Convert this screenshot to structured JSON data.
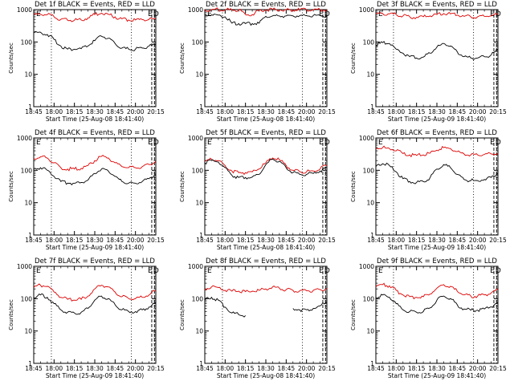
{
  "colors": {
    "events": "#000000",
    "lld": "#dd0000",
    "background": "#ffffff",
    "axes": "#000000"
  },
  "chart_data": [
    {
      "type": "line",
      "title": "Det 1f BLACK = Events, RED = LLD",
      "xlabel": "Start Time (25-Aug-08 18:41:40)",
      "ylabel": "Counts/sec",
      "x": [
        "18:45",
        "18:50",
        "18:55",
        "19:00",
        "19:05",
        "19:10",
        "19:15",
        "19:20",
        "19:25",
        "19:30",
        "19:35",
        "19:40",
        "19:45",
        "19:50",
        "19:55",
        "20:00",
        "20:05",
        "20:10",
        "20:15"
      ],
      "series": [
        {
          "name": "Events",
          "color": "black",
          "values": [
            190,
            200,
            170,
            120,
            75,
            60,
            60,
            62,
            75,
            110,
            150,
            130,
            90,
            65,
            60,
            60,
            65,
            75,
            80
          ]
        },
        {
          "name": "LLD",
          "color": "red",
          "values": [
            700,
            720,
            700,
            600,
            500,
            470,
            470,
            480,
            560,
            700,
            780,
            720,
            600,
            520,
            480,
            480,
            490,
            500,
            520
          ]
        }
      ],
      "ylim": [
        1,
        1000
      ],
      "yscale": "log",
      "yticks": [
        "1",
        "10",
        "100",
        "1000"
      ],
      "xticks": [
        "18:45",
        "18:00",
        "18:15",
        "18:30",
        "18:45",
        "20:00",
        "20:15"
      ],
      "markers": {
        "dotted": [
          "18:58",
          "19:57"
        ],
        "dashed": [
          "20:12",
          "20:14"
        ],
        "letters": [
          "E",
          "E",
          "D"
        ]
      }
    },
    {
      "type": "line",
      "title": "Det 2f BLACK = Events, RED = LLD",
      "xlabel": "Start Time (25-Aug-08 18:41:40)",
      "ylabel": "Counts/sec",
      "x": [
        "18:45",
        "18:50",
        "18:55",
        "19:00",
        "19:05",
        "19:10",
        "19:15",
        "19:20",
        "19:25",
        "19:30",
        "19:35",
        "19:40",
        "19:45",
        "19:50",
        "19:55",
        "20:00",
        "20:05",
        "20:10",
        "20:15"
      ],
      "series": [
        {
          "name": "Events",
          "color": "black",
          "values": [
            700,
            690,
            680,
            600,
            380,
            370,
            370,
            370,
            380,
            620,
            640,
            640,
            640,
            640,
            650,
            650,
            660,
            660,
            660
          ]
        },
        {
          "name": "LLD",
          "color": "red",
          "values": [
            1000,
            1000,
            1000,
            980,
            980,
            980,
            700,
            700,
            950,
            1000,
            1000,
            980,
            980,
            980,
            980,
            980,
            980,
            990,
            1000
          ]
        }
      ],
      "ylim": [
        1,
        1000
      ],
      "yscale": "log",
      "yticks": [
        "1",
        "10",
        "100",
        "1000"
      ],
      "xticks": [
        "18:45",
        "18:00",
        "18:15",
        "18:30",
        "18:45",
        "20:00",
        "20:15"
      ],
      "markers": {
        "dotted": [
          "18:58",
          "19:57"
        ],
        "dashed": [
          "20:12",
          "20:14"
        ],
        "letters": [
          "E",
          "E",
          "D"
        ]
      }
    },
    {
      "type": "line",
      "title": "Det 3f BLACK = Events, RED = LLD",
      "xlabel": "Start Time (25-Aug-09 18:41:40)",
      "ylabel": "Counts/sec",
      "x": [
        "18:45",
        "18:50",
        "18:55",
        "19:00",
        "19:05",
        "19:10",
        "19:15",
        "19:20",
        "19:25",
        "19:30",
        "19:35",
        "19:40",
        "19:45",
        "19:50",
        "19:55",
        "20:00",
        "20:05",
        "20:10",
        "20:15"
      ],
      "series": [
        {
          "name": "Events",
          "color": "black",
          "values": [
            80,
            95,
            90,
            60,
            45,
            35,
            32,
            34,
            45,
            70,
            90,
            75,
            50,
            35,
            32,
            32,
            35,
            40,
            55
          ]
        },
        {
          "name": "LLD",
          "color": "red",
          "values": [
            750,
            760,
            740,
            700,
            640,
            600,
            580,
            600,
            640,
            700,
            760,
            740,
            680,
            620,
            600,
            600,
            620,
            640,
            700
          ]
        }
      ],
      "ylim": [
        1,
        1000
      ],
      "yscale": "log",
      "yticks": [
        "1",
        "10",
        "100",
        "1000"
      ],
      "xticks": [
        "18:45",
        "18:00",
        "18:15",
        "18:30",
        "18:45",
        "20:00",
        "20:15"
      ],
      "markers": {
        "dotted": [
          "18:58",
          "19:57"
        ],
        "dashed": [
          "20:12",
          "20:14"
        ],
        "letters": [
          "E",
          "E",
          "D"
        ]
      }
    },
    {
      "type": "line",
      "title": "Det 4f BLACK = Events, RED = LLD",
      "xlabel": "Start Time (25-Aug-09 18:41:40)",
      "ylabel": "Counts/sec",
      "x": [
        "18:45",
        "18:50",
        "18:55",
        "19:00",
        "19:05",
        "19:10",
        "19:15",
        "19:20",
        "19:25",
        "19:30",
        "19:35",
        "19:40",
        "19:45",
        "19:50",
        "19:55",
        "20:00",
        "20:05",
        "20:10",
        "20:15"
      ],
      "series": [
        {
          "name": "Events",
          "color": "black",
          "values": [
            110,
            120,
            100,
            65,
            45,
            40,
            40,
            42,
            50,
            80,
            110,
            95,
            65,
            45,
            40,
            40,
            45,
            55,
            75
          ]
        },
        {
          "name": "LLD",
          "color": "red",
          "values": [
            230,
            260,
            240,
            170,
            120,
            110,
            110,
            115,
            140,
            200,
            270,
            240,
            170,
            130,
            120,
            120,
            130,
            150,
            190
          ]
        }
      ],
      "ylim": [
        1,
        1000
      ],
      "yscale": "log",
      "yticks": [
        "1",
        "10",
        "100",
        "1000"
      ],
      "xticks": [
        "18:45",
        "18:00",
        "18:15",
        "18:30",
        "18:45",
        "20:00",
        "20:15"
      ],
      "markers": {
        "dotted": [
          "18:58",
          "19:57"
        ],
        "dashed": [
          "20:12",
          "20:14"
        ],
        "letters": [
          "E",
          "E",
          "D"
        ]
      }
    },
    {
      "type": "line",
      "title": "Det 5f BLACK = Events, RED = LLD",
      "xlabel": "Start Time (25-Aug-08 18:41:40)",
      "ylabel": "Counts/sec",
      "x": [
        "18:45",
        "18:50",
        "18:55",
        "19:00",
        "19:05",
        "19:10",
        "19:15",
        "19:20",
        "19:25",
        "19:30",
        "19:35",
        "19:40",
        "19:45",
        "19:50",
        "19:55",
        "20:00",
        "20:05",
        "20:10",
        "20:15"
      ],
      "series": [
        {
          "name": "Events",
          "color": "black",
          "values": [
            170,
            200,
            180,
            120,
            70,
            60,
            60,
            62,
            75,
            150,
            220,
            190,
            120,
            85,
            75,
            75,
            80,
            95,
            120
          ]
        },
        {
          "name": "LLD",
          "color": "red",
          "values": [
            190,
            220,
            200,
            140,
            95,
            85,
            85,
            90,
            110,
            170,
            240,
            210,
            140,
            100,
            90,
            90,
            95,
            110,
            140
          ]
        }
      ],
      "ylim": [
        1,
        1000
      ],
      "yscale": "log",
      "yticks": [
        "1",
        "10",
        "100",
        "1000"
      ],
      "xticks": [
        "18:45",
        "18:00",
        "18:15",
        "18:30",
        "18:45",
        "20:00",
        "20:15"
      ],
      "markers": {
        "dotted": [
          "18:58",
          "19:57"
        ],
        "dashed": [
          "20:12",
          "20:14"
        ],
        "letters": [
          "E",
          "E",
          "D"
        ]
      }
    },
    {
      "type": "line",
      "title": "Det 6f BLACK = Events, RED = LLD",
      "xlabel": "Start Time (25-Aug-09 18:41:40)",
      "ylabel": "Counts/sec",
      "x": [
        "18:45",
        "18:50",
        "18:55",
        "19:00",
        "19:05",
        "19:10",
        "19:15",
        "19:20",
        "19:25",
        "19:30",
        "19:35",
        "19:40",
        "19:45",
        "19:50",
        "19:55",
        "20:00",
        "20:05",
        "20:10",
        "20:15"
      ],
      "series": [
        {
          "name": "Events",
          "color": "black",
          "values": [
            130,
            160,
            140,
            90,
            55,
            45,
            42,
            45,
            60,
            110,
            150,
            120,
            75,
            52,
            48,
            48,
            52,
            60,
            80
          ]
        },
        {
          "name": "LLD",
          "color": "red",
          "values": [
            480,
            500,
            470,
            400,
            330,
            300,
            290,
            300,
            340,
            420,
            500,
            470,
            380,
            320,
            300,
            300,
            310,
            320,
            340
          ]
        }
      ],
      "ylim": [
        1,
        1000
      ],
      "yscale": "log",
      "yticks": [
        "1",
        "10",
        "100",
        "1000"
      ],
      "xticks": [
        "18:45",
        "18:00",
        "18:15",
        "18:30",
        "18:45",
        "20:00",
        "20:15"
      ],
      "markers": {
        "dotted": [
          "18:58",
          "19:57"
        ],
        "dashed": [
          "20:12",
          "20:14"
        ],
        "letters": [
          "E",
          "E",
          "D"
        ]
      }
    },
    {
      "type": "line",
      "title": "Det 7f BLACK = Events, RED = LLD",
      "xlabel": "Start Time (25-Aug-09 18:41:40)",
      "ylabel": "Counts/sec",
      "x": [
        "18:45",
        "18:50",
        "18:55",
        "19:00",
        "19:05",
        "19:10",
        "19:15",
        "19:20",
        "19:25",
        "19:30",
        "19:35",
        "19:40",
        "19:45",
        "19:50",
        "19:55",
        "20:00",
        "20:05",
        "20:10",
        "20:15"
      ],
      "series": [
        {
          "name": "Events",
          "color": "black",
          "values": [
            110,
            130,
            110,
            70,
            45,
            38,
            36,
            38,
            50,
            90,
            120,
            100,
            65,
            45,
            40,
            40,
            45,
            55,
            75
          ]
        },
        {
          "name": "LLD",
          "color": "red",
          "values": [
            220,
            260,
            240,
            160,
            110,
            95,
            90,
            95,
            120,
            200,
            260,
            230,
            160,
            115,
            100,
            100,
            110,
            130,
            180
          ]
        }
      ],
      "ylim": [
        1,
        1000
      ],
      "yscale": "log",
      "yticks": [
        "1",
        "10",
        "100",
        "1000"
      ],
      "xticks": [
        "18:45",
        "18:00",
        "18:15",
        "18:30",
        "18:45",
        "20:00",
        "20:15"
      ],
      "markers": {
        "dotted": [
          "18:58",
          "19:57"
        ],
        "dashed": [
          "20:12",
          "20:14"
        ],
        "letters": [
          "E",
          "E",
          "D"
        ]
      }
    },
    {
      "type": "line",
      "title": "Det 8f BLACK = Events, RED = LLD",
      "xlabel": "Start Time (25-Aug-08 18:41:40)",
      "ylabel": "Counts/sec",
      "x": [
        "18:45",
        "18:50",
        "18:55",
        "19:00",
        "19:05",
        "19:10",
        "19:15",
        "19:20",
        "19:25",
        "19:30",
        "19:35",
        "19:40",
        "19:45",
        "19:50",
        "19:55",
        "20:00",
        "20:05",
        "20:10",
        "20:15"
      ],
      "series": [
        {
          "name": "Events",
          "color": "black",
          "values": [
            90,
            110,
            90,
            55,
            36,
            32,
            30,
            null,
            null,
            null,
            null,
            null,
            null,
            50,
            45,
            45,
            50,
            60,
            80
          ]
        },
        {
          "name": "LLD",
          "color": "red",
          "values": [
            200,
            230,
            220,
            180,
            170,
            170,
            165,
            170,
            180,
            200,
            230,
            210,
            190,
            180,
            175,
            175,
            180,
            190,
            210
          ]
        }
      ],
      "ylim": [
        1,
        1000
      ],
      "yscale": "log",
      "yticks": [
        "1",
        "10",
        "100",
        "1000"
      ],
      "xticks": [
        "18:45",
        "18:00",
        "18:15",
        "18:30",
        "18:45",
        "20:00",
        "20:15"
      ],
      "markers": {
        "dotted": [
          "18:58",
          "19:57"
        ],
        "dashed": [
          "20:12",
          "20:14"
        ],
        "letters": [
          "E",
          "E",
          "D"
        ]
      }
    },
    {
      "type": "line",
      "title": "Det 9f BLACK = Events, RED = LLD",
      "xlabel": "Start Time (25-Aug-09 18:41:40)",
      "ylabel": "Counts/sec",
      "x": [
        "18:45",
        "18:50",
        "18:55",
        "19:00",
        "19:05",
        "19:10",
        "19:15",
        "19:20",
        "19:25",
        "19:30",
        "19:35",
        "19:40",
        "19:45",
        "19:50",
        "19:55",
        "20:00",
        "20:05",
        "20:10",
        "20:15"
      ],
      "series": [
        {
          "name": "Events",
          "color": "black",
          "values": [
            110,
            130,
            110,
            70,
            45,
            40,
            38,
            40,
            52,
            90,
            120,
            100,
            65,
            48,
            44,
            44,
            48,
            56,
            75
          ]
        },
        {
          "name": "LLD",
          "color": "red",
          "values": [
            230,
            270,
            250,
            180,
            130,
            115,
            110,
            115,
            140,
            210,
            270,
            240,
            170,
            130,
            120,
            120,
            130,
            150,
            190
          ]
        }
      ],
      "ylim": [
        1,
        1000
      ],
      "yscale": "log",
      "yticks": [
        "1",
        "10",
        "100",
        "1000"
      ],
      "xticks": [
        "18:45",
        "18:00",
        "18:15",
        "18:30",
        "18:45",
        "20:00",
        "20:15"
      ],
      "markers": {
        "dotted": [
          "18:58",
          "19:57"
        ],
        "dashed": [
          "20:12",
          "20:14"
        ],
        "letters": [
          "E",
          "E",
          "D"
        ]
      }
    }
  ]
}
